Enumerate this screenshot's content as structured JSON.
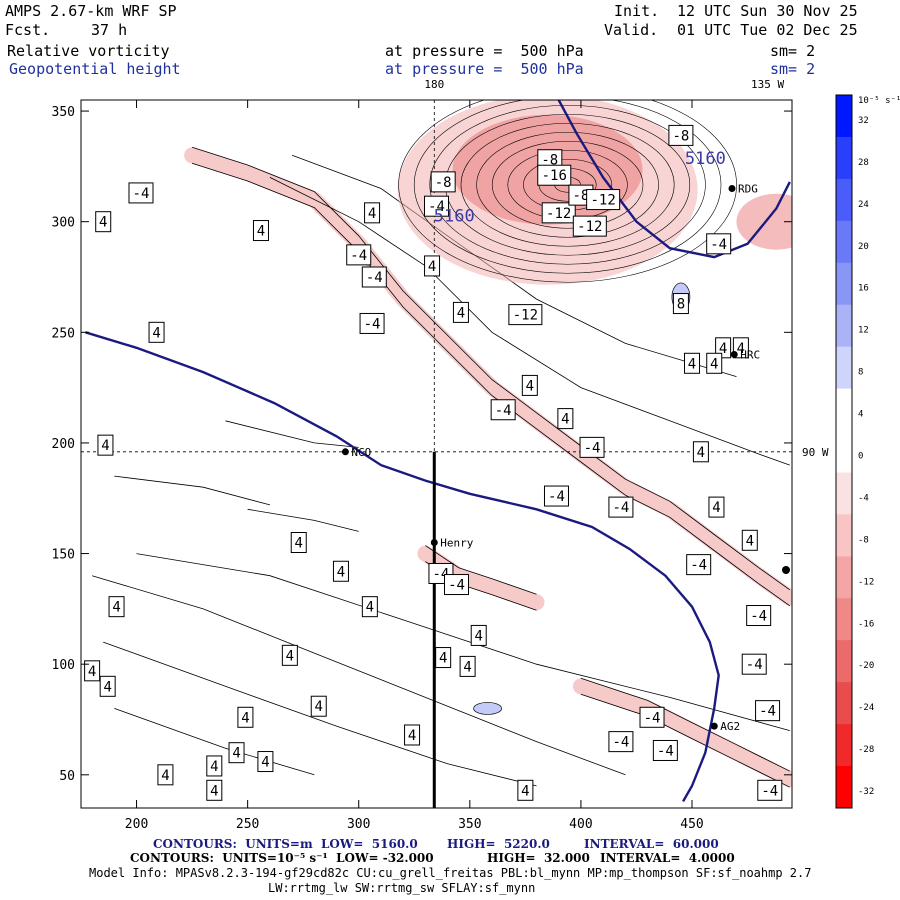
{
  "header": {
    "model": "AMPS 2.67-km WRF SP",
    "fcst_label": "Fcst.",
    "fcst_value": "37 h",
    "init_label": "Init.",
    "init_time": "12 UTC Sun 30 Nov 25",
    "valid_label": "Valid.",
    "valid_time": "01 UTC Tue 02 Dec 25",
    "field1": "Relative vorticity",
    "field2": "Geopotential height",
    "pressure1": "at pressure =  500 hPa",
    "pressure2": "at pressure =  500 hPa",
    "sm1": "sm= 2",
    "sm2": "sm= 2"
  },
  "footer": {
    "line1_left": "CONTOURS:  UNITS=m  LOW=  5160.0",
    "line1_high": "HIGH=  5220.0",
    "line1_interval": "INTERVAL=  60.000",
    "line2_left": "CONTOURS:  UNITS=10⁻⁵ s⁻¹  LOW= -32.000",
    "line2_high": "HIGH=  32.000",
    "line2_interval": "INTERVAL=  4.0000",
    "line3": "Model Info: MPASv8.2.3-194-gf29cd82c CU:cu_grell_freitas PBL:bl_mynn MP:mp_thompson SF:sf_noahmp 2.7",
    "line4": "LW:rrtmg_lw SW:rrtmg_sw SFLAY:sf_mynn"
  },
  "colorbar": {
    "unit_label": "10⁻⁵ s⁻¹",
    "levels": [
      32,
      28,
      24,
      20,
      16,
      12,
      8,
      4,
      0,
      -4,
      -8,
      -12,
      -16,
      -20,
      -24,
      -28,
      -32
    ],
    "colors": [
      "#0018ff",
      "#2a3ffc",
      "#4a5cfa",
      "#6a79f8",
      "#8a96f6",
      "#aab3f5",
      "#cfd4fa",
      "#ffffff",
      "#ffffff",
      "#fbe2e2",
      "#f8c4c4",
      "#f4a6a6",
      "#f08888",
      "#ec6a6a",
      "#e84c4c",
      "#f02a2a",
      "#ff0000"
    ]
  },
  "chart_data": {
    "type": "contour",
    "title": "Relative vorticity (10⁻⁵ s⁻¹) and Geopotential height (m) at 500 hPa",
    "xlim": [
      175,
      495
    ],
    "ylim": [
      35,
      355
    ],
    "x_ticks": [
      200,
      250,
      300,
      350,
      400,
      450
    ],
    "y_ticks": [
      50,
      100,
      150,
      200,
      250,
      300,
      350
    ],
    "top_labels": [
      {
        "x": 334,
        "text": "180"
      },
      {
        "x": 484,
        "text": "135 W"
      }
    ],
    "right_labels": [
      {
        "y": 196,
        "text": "90 W"
      }
    ],
    "height_contour_label": "5160",
    "height_contour_label_positions": [
      {
        "x": 456,
        "y": 326
      },
      {
        "x": 343,
        "y": 300
      }
    ],
    "height_contour_line": [
      [
        177,
        250
      ],
      [
        200,
        243
      ],
      [
        230,
        232
      ],
      [
        262,
        218
      ],
      [
        290,
        203
      ],
      [
        310,
        190
      ],
      [
        330,
        183
      ],
      [
        350,
        177
      ],
      [
        380,
        170
      ],
      [
        405,
        162
      ],
      [
        422,
        152
      ],
      [
        438,
        140
      ],
      [
        450,
        126
      ],
      [
        458,
        110
      ],
      [
        462,
        95
      ],
      [
        460,
        80
      ],
      [
        456,
        60
      ],
      [
        450,
        45
      ],
      [
        446,
        38
      ]
    ],
    "height_contour_line_upper": [
      [
        390,
        355
      ],
      [
        398,
        340
      ],
      [
        410,
        320
      ],
      [
        425,
        300
      ],
      [
        440,
        288
      ],
      [
        460,
        284
      ],
      [
        475,
        290
      ],
      [
        488,
        306
      ],
      [
        494,
        318
      ]
    ],
    "stations": [
      {
        "name": "NCO",
        "x": 294,
        "y": 196
      },
      {
        "name": "Henry",
        "x": 334,
        "y": 155
      },
      {
        "name": "HRC",
        "x": 469,
        "y": 240
      },
      {
        "name": "AG2",
        "x": 460,
        "y": 72
      },
      {
        "name": "RDG",
        "x": 468,
        "y": 315
      }
    ],
    "contour_labels": [
      {
        "v": "4",
        "x": 209,
        "y": 250
      },
      {
        "v": "4",
        "x": 256,
        "y": 296
      },
      {
        "v": "4",
        "x": 186,
        "y": 199
      },
      {
        "v": "-4",
        "x": 202,
        "y": 313
      },
      {
        "v": "4",
        "x": 185,
        "y": 300
      },
      {
        "v": "-4",
        "x": 300,
        "y": 285
      },
      {
        "v": "-4",
        "x": 307,
        "y": 275
      },
      {
        "v": "-4",
        "x": 306,
        "y": 254
      },
      {
        "v": "4",
        "x": 306,
        "y": 304
      },
      {
        "v": "-4",
        "x": 335,
        "y": 307
      },
      {
        "v": "4",
        "x": 333,
        "y": 280
      },
      {
        "v": "4",
        "x": 346,
        "y": 259
      },
      {
        "v": "-12",
        "x": 390,
        "y": 304
      },
      {
        "v": "-12",
        "x": 404,
        "y": 298
      },
      {
        "v": "-8",
        "x": 338,
        "y": 318
      },
      {
        "v": "-8",
        "x": 386,
        "y": 328
      },
      {
        "v": "-16",
        "x": 388,
        "y": 321
      },
      {
        "v": "-8",
        "x": 445,
        "y": 339
      },
      {
        "v": "-8",
        "x": 400,
        "y": 312
      },
      {
        "v": "-12",
        "x": 410,
        "y": 310
      },
      {
        "v": "-12",
        "x": 375,
        "y": 258
      },
      {
        "v": "-4",
        "x": 462,
        "y": 290
      },
      {
        "v": "8",
        "x": 445,
        "y": 263
      },
      {
        "v": "4",
        "x": 464,
        "y": 243
      },
      {
        "v": "4",
        "x": 472,
        "y": 243
      },
      {
        "v": "4",
        "x": 450,
        "y": 236
      },
      {
        "v": "4",
        "x": 460,
        "y": 236
      },
      {
        "v": "4",
        "x": 377,
        "y": 226
      },
      {
        "v": "-4",
        "x": 365,
        "y": 215
      },
      {
        "v": "4",
        "x": 393,
        "y": 211
      },
      {
        "v": "-4",
        "x": 405,
        "y": 198
      },
      {
        "v": "4",
        "x": 454,
        "y": 196
      },
      {
        "v": "-4",
        "x": 389,
        "y": 176
      },
      {
        "v": "-4",
        "x": 418,
        "y": 171
      },
      {
        "v": "4",
        "x": 461,
        "y": 171
      },
      {
        "v": "4",
        "x": 476,
        "y": 156
      },
      {
        "v": "4",
        "x": 273,
        "y": 155
      },
      {
        "v": "4",
        "x": 292,
        "y": 142
      },
      {
        "v": "-4",
        "x": 337,
        "y": 141
      },
      {
        "v": "-4",
        "x": 344,
        "y": 136
      },
      {
        "v": "4",
        "x": 191,
        "y": 126
      },
      {
        "v": "4",
        "x": 305,
        "y": 126
      },
      {
        "v": "4",
        "x": 354,
        "y": 113
      },
      {
        "v": "4",
        "x": 269,
        "y": 104
      },
      {
        "v": "4",
        "x": 338,
        "y": 103
      },
      {
        "v": "4",
        "x": 349,
        "y": 99
      },
      {
        "v": "4",
        "x": 180,
        "y": 97
      },
      {
        "v": "4",
        "x": 187,
        "y": 90
      },
      {
        "v": "4",
        "x": 282,
        "y": 81
      },
      {
        "v": "4",
        "x": 249,
        "y": 76
      },
      {
        "v": "4",
        "x": 324,
        "y": 68
      },
      {
        "v": "-4",
        "x": 432,
        "y": 76
      },
      {
        "v": "-4",
        "x": 453,
        "y": 145
      },
      {
        "v": "-4",
        "x": 480,
        "y": 122
      },
      {
        "v": "-4",
        "x": 478,
        "y": 100
      },
      {
        "v": "-4",
        "x": 484,
        "y": 79
      },
      {
        "v": "-4",
        "x": 418,
        "y": 65
      },
      {
        "v": "-4",
        "x": 438,
        "y": 61
      },
      {
        "v": "4",
        "x": 245,
        "y": 60
      },
      {
        "v": "4",
        "x": 235,
        "y": 54
      },
      {
        "v": "4",
        "x": 258,
        "y": 56
      },
      {
        "v": "4",
        "x": 213,
        "y": 50
      },
      {
        "v": "4",
        "x": 235,
        "y": 43
      },
      {
        "v": "4",
        "x": 375,
        "y": 43
      },
      {
        "v": "-4",
        "x": 485,
        "y": 43
      }
    ],
    "vorticity_bands": [
      {
        "value": -4,
        "path": [
          [
            225,
            330
          ],
          [
            250,
            322
          ],
          [
            280,
            310
          ],
          [
            300,
            290
          ],
          [
            320,
            265
          ],
          [
            340,
            245
          ],
          [
            360,
            225
          ],
          [
            380,
            210
          ],
          [
            400,
            195
          ],
          [
            420,
            180
          ],
          [
            440,
            170
          ],
          [
            460,
            155
          ],
          [
            480,
            140
          ],
          [
            494,
            130
          ]
        ]
      },
      {
        "value": -4,
        "path": [
          [
            330,
            150
          ],
          [
            345,
            140
          ],
          [
            360,
            135
          ],
          [
            380,
            128
          ]
        ]
      },
      {
        "value": -4,
        "path": [
          [
            400,
            90
          ],
          [
            430,
            80
          ],
          [
            450,
            70
          ],
          [
            470,
            60
          ],
          [
            494,
            48
          ]
        ]
      }
    ],
    "vortex_center": {
      "x": 385,
      "y": 328
    },
    "section_line": {
      "x": 334,
      "y_from": 35,
      "y_to": 196
    }
  }
}
